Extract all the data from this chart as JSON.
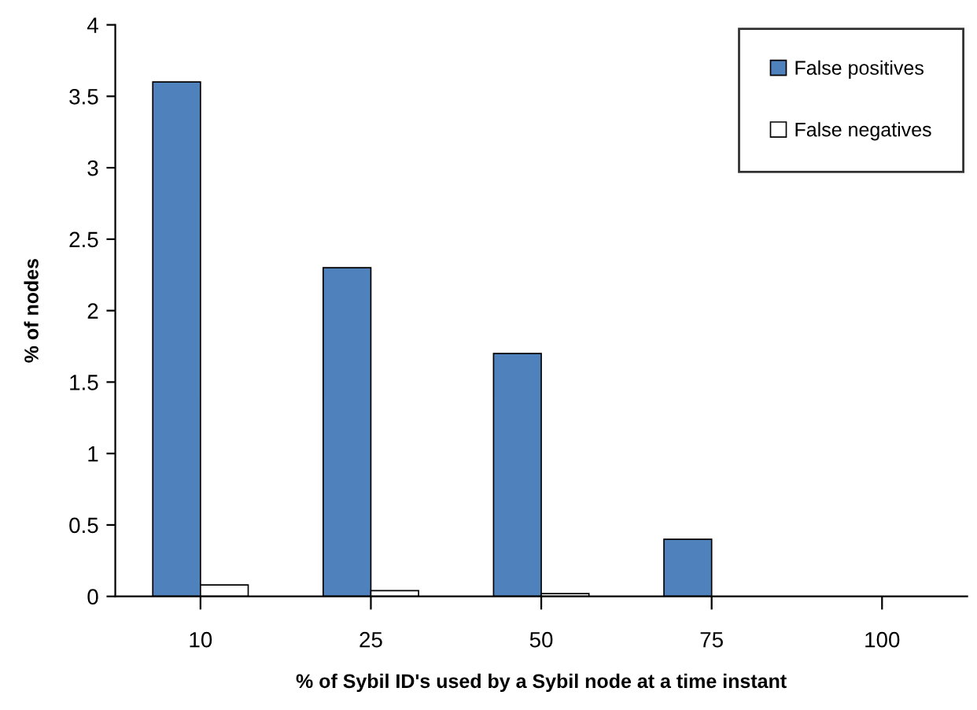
{
  "chart_data": {
    "type": "bar",
    "xlabel": "% of Sybil ID's used by a Sybil node at a time instant",
    "ylabel": "% of nodes",
    "categories": [
      "10",
      "25",
      "50",
      "75",
      "100"
    ],
    "series": [
      {
        "name": "False positives",
        "color": "#4f81bd",
        "values": [
          3.6,
          2.3,
          1.7,
          0.4,
          0
        ]
      },
      {
        "name": "False negatives",
        "color": "#ffffff",
        "values": [
          0.08,
          0.04,
          0.02,
          0,
          0
        ]
      }
    ],
    "ylim": [
      0,
      4
    ],
    "yticks": [
      0,
      0.5,
      1,
      1.5,
      2,
      2.5,
      3,
      3.5,
      4
    ],
    "grid": false,
    "legend": "top right"
  }
}
